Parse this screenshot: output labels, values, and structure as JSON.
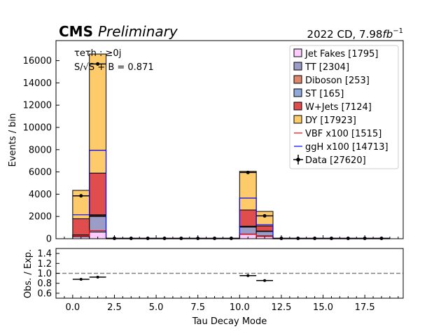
{
  "header": {
    "cms": "CMS",
    "preliminary": "Preliminary",
    "lumi_main": "2022 CD, 7.98",
    "lumi_unit": "fb",
    "lumi_exp": "−1"
  },
  "annotation": {
    "channel": "τeτh : ≥0j",
    "significance": "S/√S + B  = 0.871"
  },
  "chart_data": [
    {
      "type": "bar",
      "stacked": true,
      "xlabel": "",
      "ylabel": "Events / bin",
      "xlim": [
        -1,
        19.8
      ],
      "ylim": [
        0,
        17800
      ],
      "yticks": [
        0,
        2000,
        4000,
        6000,
        8000,
        10000,
        12000,
        14000,
        16000
      ],
      "ytick_labels": [
        "0",
        "2000",
        "4000",
        "6000",
        "8000",
        "10000",
        "12000",
        "14000",
        "16000"
      ],
      "bin_edges": [
        0,
        1,
        2,
        3,
        4,
        5,
        6,
        7,
        8,
        9,
        10,
        11,
        12,
        13,
        14,
        15,
        16,
        17,
        18,
        19
      ],
      "series": [
        {
          "name": "Jet Fakes [1795]",
          "color": "#fccdfc",
          "values": [
            180,
            600,
            5,
            5,
            5,
            5,
            5,
            5,
            5,
            5,
            400,
            250,
            5,
            5,
            5,
            5,
            5,
            5,
            5
          ]
        },
        {
          "name": "TT [2304]",
          "color": "#9c9cc9",
          "values": [
            130,
            1400,
            5,
            5,
            5,
            5,
            5,
            5,
            5,
            5,
            650,
            400,
            5,
            5,
            5,
            5,
            5,
            5,
            5
          ]
        },
        {
          "name": "Diboson [253]",
          "color": "#e0886a",
          "values": [
            20,
            90,
            0,
            0,
            0,
            0,
            0,
            0,
            0,
            0,
            40,
            20,
            0,
            0,
            0,
            0,
            0,
            0,
            0
          ]
        },
        {
          "name": "ST [165]",
          "color": "#8eaad8",
          "values": [
            15,
            55,
            0,
            0,
            0,
            0,
            0,
            0,
            0,
            0,
            30,
            15,
            0,
            0,
            0,
            0,
            0,
            0,
            0
          ]
        },
        {
          "name": "W+Jets [7124]",
          "color": "#e04d4d",
          "values": [
            1450,
            3750,
            10,
            10,
            10,
            10,
            10,
            10,
            10,
            10,
            1460,
            450,
            10,
            10,
            10,
            10,
            10,
            10,
            10
          ]
        },
        {
          "name": "DY [17923]",
          "color": "#fecb6a",
          "values": [
            2550,
            10700,
            20,
            20,
            20,
            20,
            20,
            20,
            20,
            20,
            3470,
            1315,
            20,
            20,
            20,
            20,
            20,
            20,
            20
          ]
        }
      ],
      "lines": [
        {
          "name": "VBF x100 [1515]",
          "color": "#ff0000",
          "values": [
            280,
            720,
            0,
            0,
            0,
            0,
            0,
            0,
            0,
            0,
            420,
            200,
            0,
            0,
            0,
            0,
            0,
            0,
            0
          ]
        },
        {
          "name": "ggH x100 [14713]",
          "color": "#0000ff",
          "values": [
            2150,
            7950,
            0,
            0,
            0,
            0,
            0,
            0,
            0,
            0,
            3650,
            1250,
            0,
            0,
            0,
            0,
            0,
            0,
            0
          ]
        }
      ],
      "data": {
        "name": "Data [27620]",
        "x": [
          0.5,
          1.5,
          2.5,
          3.5,
          4.5,
          5.5,
          6.5,
          7.5,
          8.5,
          9.5,
          10.5,
          11.5,
          12.5,
          13.5,
          14.5,
          15.5,
          16.5,
          17.5,
          18.5
        ],
        "y": [
          3850,
          15700,
          30,
          30,
          30,
          30,
          30,
          30,
          30,
          30,
          5950,
          2050,
          30,
          30,
          30,
          30,
          30,
          30,
          30
        ]
      },
      "legend_position": "top-right"
    },
    {
      "type": "scatter",
      "xlabel": "Tau Decay Mode",
      "ylabel": "Obs. / Exp.",
      "xlim": [
        -1,
        19.8
      ],
      "ylim": [
        0.5,
        1.5
      ],
      "xticks": [
        0,
        2.5,
        5,
        7.5,
        10,
        12.5,
        15,
        17.5
      ],
      "xtick_labels": [
        "0.0",
        "2.5",
        "5.0",
        "7.5",
        "10.0",
        "12.5",
        "15.0",
        "17.5"
      ],
      "yticks": [
        0.6,
        0.8,
        1.0,
        1.2,
        1.4
      ],
      "ytick_labels": [
        "0.6",
        "0.8",
        "1.0",
        "1.2",
        "1.4"
      ],
      "reference_line": 1.0,
      "points": [
        {
          "x": 0.5,
          "y": 0.88
        },
        {
          "x": 1.5,
          "y": 0.925
        },
        {
          "x": 10.5,
          "y": 0.955
        },
        {
          "x": 11.5,
          "y": 0.855
        }
      ]
    }
  ]
}
